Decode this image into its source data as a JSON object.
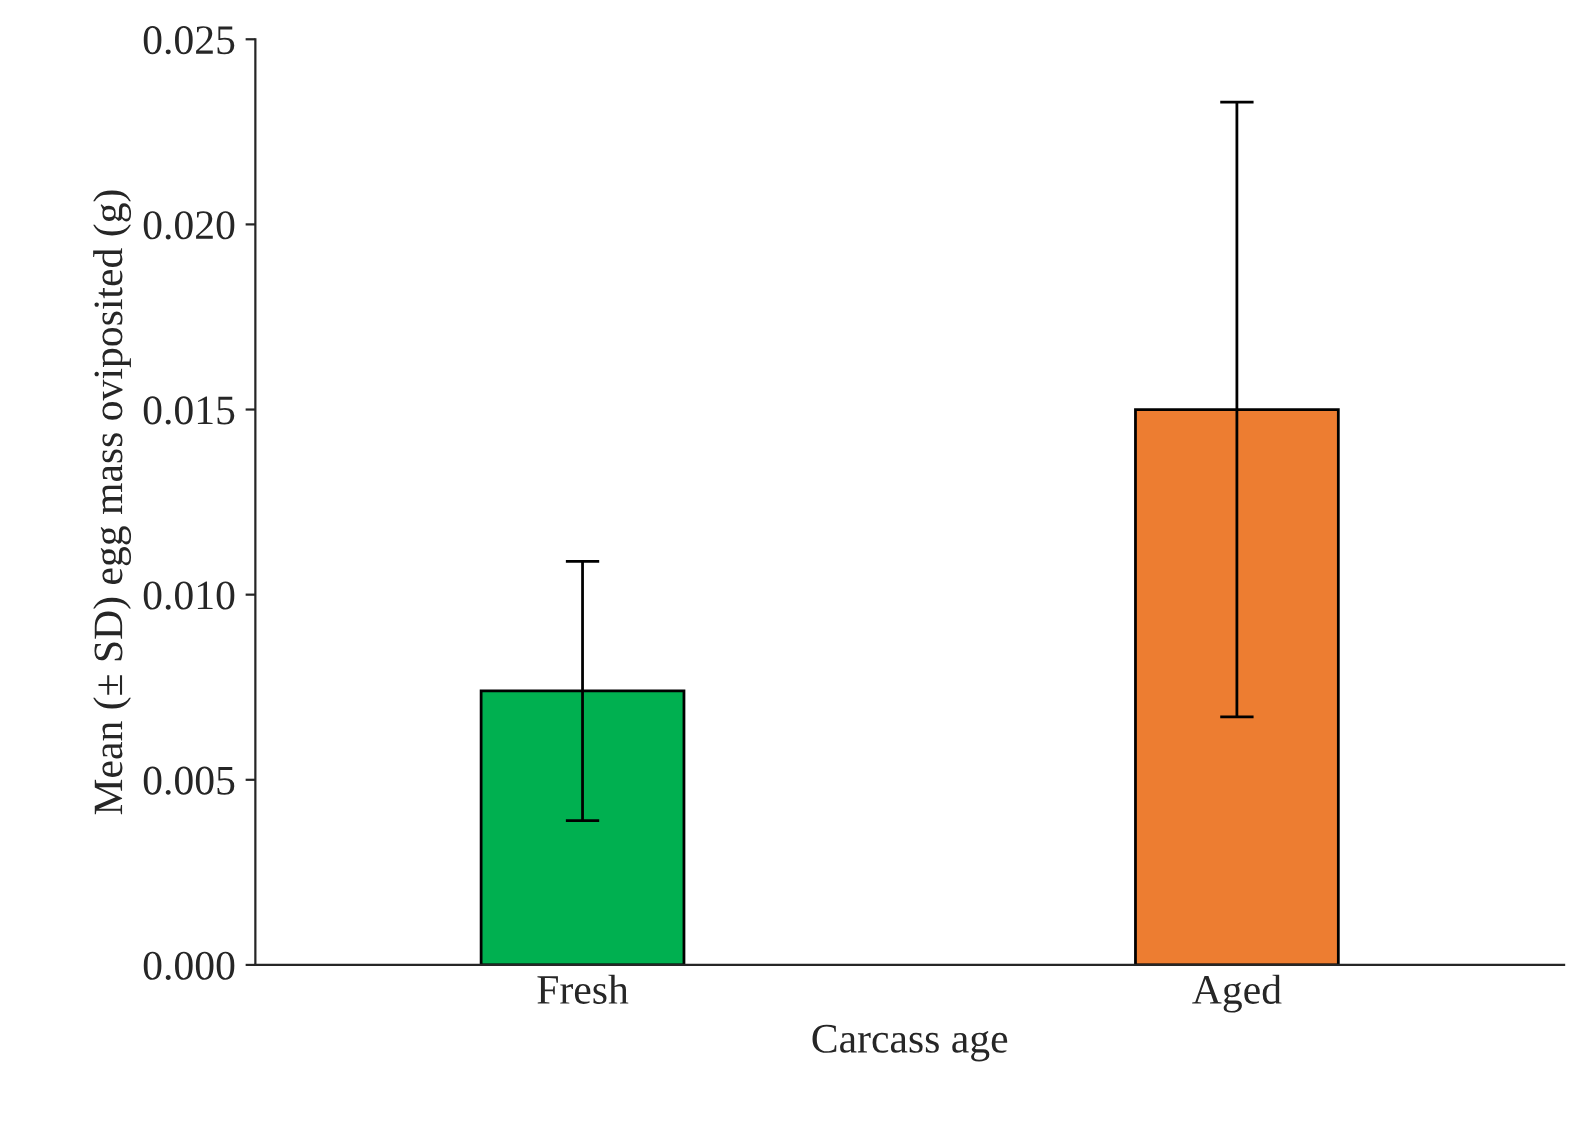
{
  "chart_data": {
    "type": "bar",
    "xlabel": "Carcass age",
    "ylabel": "Mean (± SD) egg mass oviposited (g)",
    "categories": [
      "Fresh",
      "Aged"
    ],
    "values": [
      0.0074,
      0.015
    ],
    "colors": [
      "#00b050",
      "#ed7d31"
    ],
    "errors": [
      0.0035,
      0.0083
    ],
    "ylim": [
      0,
      0.025
    ],
    "yticks": [
      {
        "value": 0,
        "label": "0.000"
      },
      {
        "value": 0.005,
        "label": "0.005"
      },
      {
        "value": 0.01,
        "label": "0.010"
      },
      {
        "value": 0.015,
        "label": "0.015"
      },
      {
        "value": 0.02,
        "label": "0.020"
      },
      {
        "value": 0.025,
        "label": "0.025"
      }
    ],
    "grid": false,
    "legend": false
  }
}
